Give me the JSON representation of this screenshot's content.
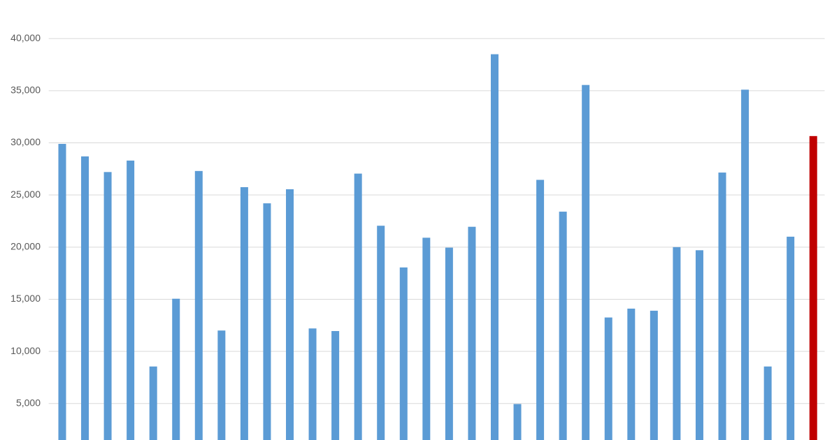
{
  "chart_data": {
    "type": "bar",
    "categories": [
      null,
      null,
      null,
      null,
      null,
      null,
      null,
      null,
      null,
      null,
      null,
      null,
      null,
      null,
      null,
      null,
      null,
      null,
      null,
      null,
      null,
      null,
      null,
      null,
      null,
      null,
      null,
      null,
      null,
      null,
      null,
      null,
      null,
      null
    ],
    "values": [
      29900,
      28700,
      27200,
      28300,
      8550,
      15050,
      27300,
      12000,
      25750,
      24200,
      25550,
      12200,
      11950,
      27050,
      22050,
      18050,
      20900,
      19950,
      21950,
      38500,
      4950,
      26450,
      23400,
      35550,
      13250,
      14100,
      13900,
      20000,
      19700,
      27150,
      35100,
      8550,
      21000,
      30650
    ],
    "colors": [
      "#5b9bd5",
      "#5b9bd5",
      "#5b9bd5",
      "#5b9bd5",
      "#5b9bd5",
      "#5b9bd5",
      "#5b9bd5",
      "#5b9bd5",
      "#5b9bd5",
      "#5b9bd5",
      "#5b9bd5",
      "#5b9bd5",
      "#5b9bd5",
      "#5b9bd5",
      "#5b9bd5",
      "#5b9bd5",
      "#5b9bd5",
      "#5b9bd5",
      "#5b9bd5",
      "#5b9bd5",
      "#5b9bd5",
      "#5b9bd5",
      "#5b9bd5",
      "#5b9bd5",
      "#5b9bd5",
      "#5b9bd5",
      "#5b9bd5",
      "#5b9bd5",
      "#5b9bd5",
      "#5b9bd5",
      "#5b9bd5",
      "#5b9bd5",
      "#5b9bd5",
      "#c00000"
    ],
    "ylim": [
      1500,
      43700
    ],
    "yticks": [
      {
        "value": 5000,
        "label": "5,000"
      },
      {
        "value": 10000,
        "label": "10,000"
      },
      {
        "value": 15000,
        "label": "15,000"
      },
      {
        "value": 20000,
        "label": "20,000"
      },
      {
        "value": 25000,
        "label": "25,000"
      },
      {
        "value": 30000,
        "label": "30,000"
      },
      {
        "value": 35000,
        "label": "35,000"
      },
      {
        "value": 40000,
        "label": "40,000"
      }
    ],
    "grid": true
  }
}
